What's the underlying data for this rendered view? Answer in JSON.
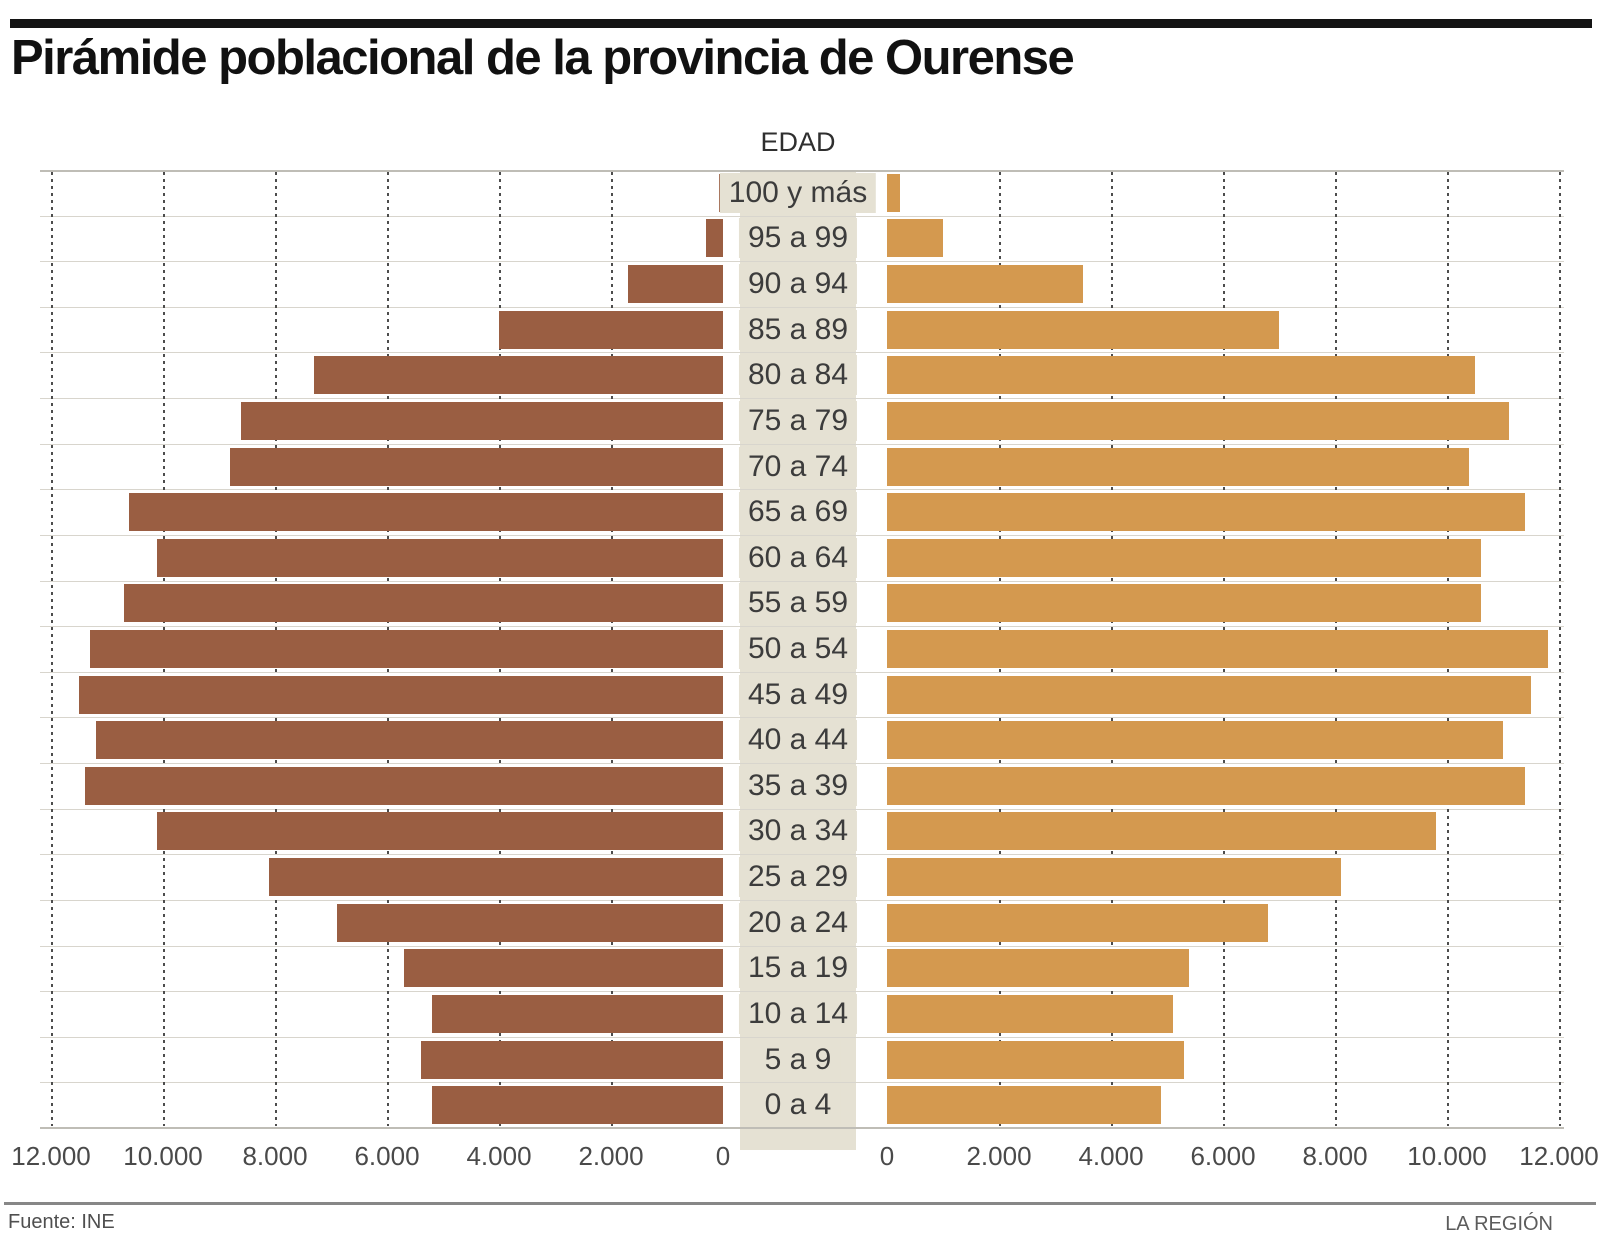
{
  "header": {
    "title": "Pirámide poblacional de la provincia de Ourense"
  },
  "chart_data": {
    "type": "bar",
    "subtype": "population-pyramid",
    "orientation": "horizontal",
    "title": "Pirámide poblacional de la provincia de Ourense",
    "center_axis_title": "EDAD",
    "categories": [
      "100 y más",
      "95 a 99",
      "90 a 94",
      "85 a 89",
      "80 a 84",
      "75 a 79",
      "70 a 74",
      "65 a 69",
      "60 a 64",
      "55 a 59",
      "50 a 54",
      "45 a 49",
      "40 a 44",
      "35 a 39",
      "30 a 34",
      "25 a 29",
      "20 a 24",
      "15 a 19",
      "10 a 14",
      "5 a 9",
      "0 a 4"
    ],
    "series": [
      {
        "name": "left",
        "color": "#9A5E42",
        "values": [
          80,
          300,
          1700,
          4000,
          7300,
          8600,
          8800,
          10600,
          10100,
          10700,
          11300,
          11500,
          11200,
          11400,
          10100,
          8100,
          6900,
          5700,
          5200,
          5400,
          5200
        ]
      },
      {
        "name": "right",
        "color": "#D4994F",
        "values": [
          230,
          1000,
          3500,
          7000,
          10500,
          11100,
          10400,
          11400,
          10600,
          10600,
          11800,
          11500,
          11000,
          11400,
          9800,
          8100,
          6800,
          5400,
          5100,
          5300,
          4900
        ]
      }
    ],
    "xlim": [
      0,
      12000
    ],
    "tick_step": 2000,
    "ticks_left": [
      "12.000",
      "10.000",
      "8.000",
      "6.000",
      "4.000",
      "2.000",
      "0"
    ],
    "ticks_right": [
      "0",
      "2.000",
      "4.000",
      "6.000",
      "8.000",
      "10.000",
      "12.000"
    ],
    "grid": "dotted-vertical",
    "legend": "none"
  },
  "footer": {
    "source": "Fuente: INE",
    "credit": "LA REGIÓN"
  }
}
